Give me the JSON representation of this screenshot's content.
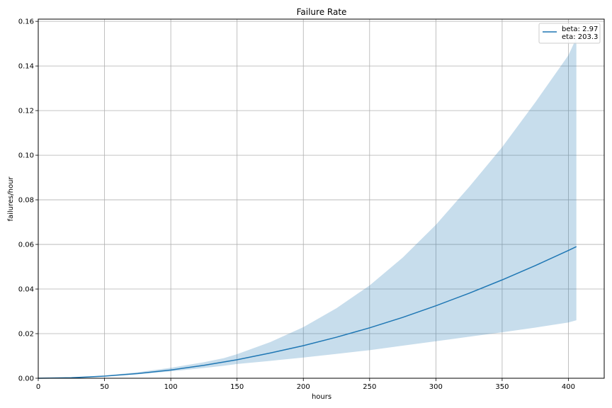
{
  "chart_data": {
    "type": "line",
    "title": "Failure Rate",
    "xlabel": "hours",
    "ylabel": "failures/hour",
    "xlim": [
      0,
      427
    ],
    "ylim": [
      0,
      0.161
    ],
    "xticks": [
      0,
      50,
      100,
      150,
      200,
      250,
      300,
      350,
      400
    ],
    "yticks": [
      0.0,
      0.02,
      0.04,
      0.06,
      0.08,
      0.1,
      0.12,
      0.14,
      0.16
    ],
    "xtick_labels": [
      "0",
      "50",
      "100",
      "150",
      "200",
      "250",
      "300",
      "350",
      "400"
    ],
    "ytick_labels": [
      "0.00",
      "0.02",
      "0.04",
      "0.06",
      "0.08",
      "0.10",
      "0.12",
      "0.14",
      "0.16"
    ],
    "grid": true,
    "legend_position": "top-right",
    "legend": [
      "beta: 2.97",
      "eta: 203.3"
    ],
    "series": [
      {
        "name": "beta: 2.97\neta: 203.3",
        "color": "#1f77b4",
        "beta": 2.97,
        "eta": 203.3,
        "x": [
          0,
          25,
          50,
          75,
          100,
          125,
          150,
          175,
          200,
          225,
          250,
          275,
          300,
          325,
          350,
          375,
          400,
          406
        ],
        "y": [
          0,
          0.00023,
          0.00094,
          0.0021,
          0.0037,
          0.0058,
          0.0083,
          0.0113,
          0.0146,
          0.0184,
          0.0226,
          0.0273,
          0.0325,
          0.0381,
          0.0441,
          0.0505,
          0.0573,
          0.059
        ]
      }
    ],
    "confidence_band": {
      "color": "#1f77b4",
      "x": [
        0,
        25,
        50,
        75,
        100,
        125,
        140,
        150,
        175,
        200,
        225,
        250,
        275,
        300,
        325,
        350,
        375,
        400,
        406
      ],
      "lower": [
        0,
        0.0002,
        0.0008,
        0.0018,
        0.0031,
        0.0046,
        0.0056,
        0.0064,
        0.0078,
        0.0093,
        0.0109,
        0.0126,
        0.0146,
        0.0166,
        0.0186,
        0.0206,
        0.0227,
        0.025,
        0.026
      ],
      "upper": [
        0,
        0.0003,
        0.0012,
        0.0027,
        0.0047,
        0.0072,
        0.009,
        0.0108,
        0.0162,
        0.0229,
        0.0314,
        0.0416,
        0.0541,
        0.0688,
        0.0857,
        0.1036,
        0.1237,
        0.1448,
        0.1525
      ]
    }
  }
}
